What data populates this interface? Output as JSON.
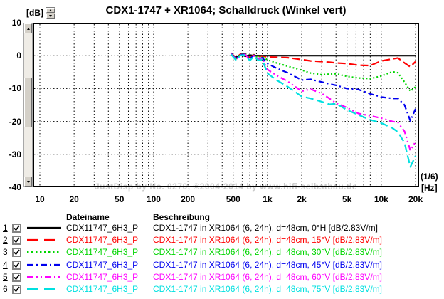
{
  "header": {
    "title": "CDX1-1747 + XR1064; Schalldruck (Winkel vert)",
    "y_unit_label": "[dB]"
  },
  "plot": {
    "watermark": "JustDisp by No. 0270, ©2004-2014 by www.hifi-selbstbau.de",
    "smoothing_label": "(1/6)",
    "x_unit_label": "[Hz]"
  },
  "y_axis": {
    "ticks": [
      {
        "label": "10",
        "value": 10
      },
      {
        "label": "0",
        "value": 0
      },
      {
        "label": "-10",
        "value": -10
      },
      {
        "label": "-20",
        "value": -20
      },
      {
        "label": "-30",
        "value": -30
      },
      {
        "label": "-40",
        "value": -40
      }
    ]
  },
  "x_axis": {
    "ticks": [
      {
        "label": "10",
        "value": 10
      },
      {
        "label": "20",
        "value": 20
      },
      {
        "label": "50",
        "value": 50
      },
      {
        "label": "100",
        "value": 100
      },
      {
        "label": "200",
        "value": 200
      },
      {
        "label": "500",
        "value": 500
      },
      {
        "label": "1k",
        "value": 1000
      },
      {
        "label": "2k",
        "value": 2000
      },
      {
        "label": "5k",
        "value": 5000
      },
      {
        "label": "10k",
        "value": 10000
      },
      {
        "label": "20k",
        "value": 20000
      }
    ]
  },
  "legend": {
    "headers": {
      "filename": "Dateiname",
      "description": "Beschreibung"
    },
    "rows": [
      {
        "index": "1",
        "checked": true,
        "color": "#000000",
        "line_style": "solid",
        "filename": "CDX11747_6H3_P",
        "description": "CDX1-1747 in XR1064 (6, 24h), d=48cm, 0°H [dB/2.83V/m]"
      },
      {
        "index": "2",
        "checked": true,
        "color": "#ff0000",
        "line_style": "long-dash",
        "filename": "CDX11747_6H3_P",
        "description": "CDX1-1747 in XR1064 (6, 24h), d=48cm, 15°V [dB/2.83V/m]"
      },
      {
        "index": "3",
        "checked": true,
        "color": "#00d500",
        "line_style": "dot",
        "filename": "CDX11747_6H3_P",
        "description": "CDX1-1747 in XR1064 (6, 24h), d=48cm, 30°V [dB/2.83V/m]"
      },
      {
        "index": "4",
        "checked": true,
        "color": "#0000ee",
        "line_style": "dash-dot",
        "filename": "CDX11747_6H3_P",
        "description": "CDX1-1747 in XR1064 (6, 24h), d=48cm, 45°V [dB/2.83V/m]"
      },
      {
        "index": "5",
        "checked": true,
        "color": "#ff00ff",
        "line_style": "dash-dot-dot",
        "filename": "CDX11747_6H3_P",
        "description": "CDX1-1747 in XR1064 (6, 24h), d=48cm, 60°V [dB/2.83V/m]"
      },
      {
        "index": "6",
        "checked": true,
        "color": "#00e0e0",
        "line_style": "long-dash",
        "filename": "CDX11747_6H3_P",
        "description": "CDX1-1747 in XR1064 (6, 24h), d=48cm, 75°V [dB/2.83V/m]"
      }
    ]
  },
  "chart_data": {
    "type": "line",
    "title": "CDX1-1747 + XR1064; Schalldruck (Winkel vert)",
    "xlabel": "[Hz]",
    "ylabel": "[dB]",
    "x_scale": "log",
    "xlim": [
      10,
      20000
    ],
    "ylim": [
      -40,
      10
    ],
    "grid": true,
    "smoothing": "1/6 octave",
    "frequencies": [
      480,
      530,
      580,
      640,
      700,
      760,
      830,
      900,
      1000,
      1200,
      1500,
      2000,
      2400,
      3000,
      3500,
      4000,
      5000,
      6300,
      8000,
      10000,
      12500,
      14000,
      16000,
      18000,
      20000
    ],
    "series": [
      {
        "name": "0°H",
        "color": "#000000",
        "line_style": "solid",
        "values": [
          0.5,
          -0.5,
          0.4,
          -0.2,
          0.2,
          0,
          0,
          0,
          0,
          0,
          0,
          0,
          0,
          0,
          0,
          0,
          0,
          0,
          0,
          0,
          0,
          0,
          0,
          0,
          0
        ]
      },
      {
        "name": "15°V",
        "color": "#ff0000",
        "line_style": "long-dash",
        "values": [
          0.8,
          -0.8,
          0.5,
          0.6,
          -0.6,
          0.3,
          -0.2,
          -0.1,
          -0.4,
          -0.5,
          -0.6,
          -1.2,
          -1.6,
          -1.8,
          -2.0,
          -2.2,
          -2.4,
          -2.9,
          -3.0,
          -1.6,
          -1.0,
          -0.7,
          -2.2,
          -3.4,
          -1.8
        ]
      },
      {
        "name": "30°V",
        "color": "#00d500",
        "line_style": "dot",
        "values": [
          0.7,
          -0.9,
          0.4,
          0.5,
          -0.8,
          0.2,
          -0.5,
          -0.3,
          -1.3,
          -2.2,
          -3.2,
          -4.4,
          -5.3,
          -5.8,
          -5.6,
          -5.5,
          -6.3,
          -6.8,
          -7.0,
          -6.2,
          -4.9,
          -5.2,
          -8.0,
          -10.8,
          -9.5
        ]
      },
      {
        "name": "45°V",
        "color": "#0000ee",
        "line_style": "dash-dot",
        "values": [
          0.6,
          -1.0,
          0.3,
          0.4,
          -1.0,
          0.1,
          -0.8,
          -0.6,
          -2.4,
          -3.8,
          -5.2,
          -7.4,
          -7.2,
          -8.0,
          -8.6,
          -9.0,
          -10.0,
          -10.3,
          -11.6,
          -12.6,
          -13.0,
          -13.0,
          -15.0,
          -19.8,
          -16.2
        ]
      },
      {
        "name": "60°V",
        "color": "#ff00ff",
        "line_style": "dash-dot-dot",
        "values": [
          0.5,
          -1.2,
          0.2,
          0.3,
          -1.2,
          0.0,
          -1.1,
          -0.9,
          -4.2,
          -6.0,
          -7.8,
          -10.8,
          -10.2,
          -11.5,
          -13.0,
          -14.4,
          -15.8,
          -17.6,
          -18.3,
          -19.0,
          -20.0,
          -20.3,
          -23.0,
          -28.8,
          -26.2
        ]
      },
      {
        "name": "75°V",
        "color": "#00e0e0",
        "line_style": "long-dash",
        "values": [
          0.4,
          -1.4,
          0.1,
          0.2,
          -1.5,
          -0.2,
          -1.4,
          -1.2,
          -5.4,
          -7.4,
          -9.4,
          -12.4,
          -13.0,
          -14.0,
          -14.8,
          -14.6,
          -16.5,
          -18.0,
          -19.5,
          -20.5,
          -22.0,
          -23.2,
          -26.5,
          -33.8,
          -30.5
        ]
      }
    ]
  }
}
